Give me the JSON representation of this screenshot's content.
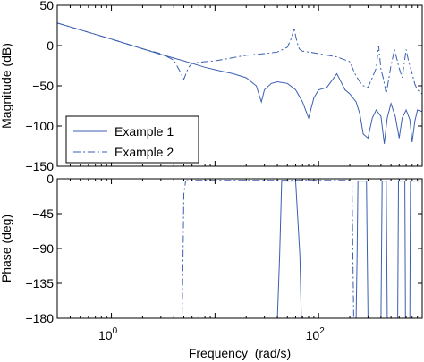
{
  "chart_data": [
    {
      "type": "line",
      "panel": "magnitude",
      "xscale": "log",
      "xlim": [
        0.3,
        1000
      ],
      "ylim": [
        -150,
        50
      ],
      "ylabel": "Magnitude (dB)",
      "xlabel": "",
      "yticks": [
        {
          "value": 50,
          "label": "50"
        },
        {
          "value": 0,
          "label": "0"
        },
        {
          "value": -50,
          "label": "−50"
        },
        {
          "value": -100,
          "label": "−100"
        },
        {
          "value": -150,
          "label": "−150"
        }
      ],
      "legend": {
        "placement": "lower-left"
      },
      "series": [
        {
          "name": "Example 1",
          "style": "solid",
          "color": "#3b5fb0",
          "x": [
            0.3,
            1,
            3,
            5,
            8,
            10,
            15,
            20,
            25,
            28,
            30,
            35,
            40,
            50,
            60,
            70,
            80,
            90,
            100,
            120,
            150,
            180,
            200,
            230,
            250,
            270,
            300,
            330,
            360,
            400,
            430,
            460,
            500,
            550,
            600,
            640,
            700,
            760,
            800,
            850,
            900,
            1000
          ],
          "y": [
            28,
            8,
            -11,
            -19,
            -27,
            -30,
            -35,
            -40,
            -50,
            -70,
            -55,
            -47,
            -45,
            -47,
            -55,
            -70,
            -90,
            -65,
            -55,
            -52,
            -35,
            -55,
            -60,
            -70,
            -85,
            -110,
            -115,
            -90,
            -80,
            -88,
            -122,
            -90,
            -72,
            -88,
            -115,
            -90,
            -80,
            -92,
            -120,
            -94,
            -80,
            -82
          ]
        },
        {
          "name": "Example 2",
          "style": "dashdot",
          "color": "#3b5fb0",
          "x": [
            0.3,
            1,
            2,
            3,
            4,
            4.5,
            5,
            5.5,
            6,
            8,
            10,
            15,
            20,
            30,
            40,
            50,
            55,
            58,
            60,
            62,
            65,
            70,
            80,
            100,
            150,
            200,
            230,
            250,
            270,
            300,
            330,
            360,
            380,
            400,
            420,
            450,
            500,
            540,
            600,
            640,
            700,
            740,
            800,
            850,
            900,
            1000
          ],
          "y": [
            28,
            8,
            -4,
            -10,
            -18,
            -30,
            -42,
            -28,
            -22,
            -20,
            -19,
            -15,
            -12,
            -10,
            -8,
            -2,
            10,
            22,
            12,
            4,
            -4,
            -7,
            -8,
            -10,
            -14,
            -20,
            -38,
            -45,
            -50,
            -52,
            -40,
            -28,
            0,
            -30,
            -40,
            -60,
            -25,
            -5,
            -28,
            -40,
            -5,
            -20,
            -35,
            -48,
            -55,
            -60
          ]
        }
      ]
    },
    {
      "type": "line",
      "panel": "phase",
      "xscale": "log",
      "xlim": [
        0.3,
        1000
      ],
      "ylim": [
        -180,
        0
      ],
      "ylabel": "Phase (deg)",
      "xlabel": "Frequency  (rad/s)",
      "xticks": [
        {
          "value": 1,
          "base": "10",
          "exp": "0"
        },
        {
          "value": 100,
          "base": "10",
          "exp": "2"
        }
      ],
      "yticks": [
        {
          "value": 0,
          "label": "0"
        },
        {
          "value": -45,
          "label": "−45"
        },
        {
          "value": -90,
          "label": "−90"
        },
        {
          "value": -135,
          "label": "−135"
        },
        {
          "value": -180,
          "label": "−180"
        }
      ],
      "series": [
        {
          "name": "Example 1",
          "style": "solid",
          "color": "#3b5fb0",
          "x": [
            0.3,
            40,
            42,
            44,
            60,
            66,
            68,
            70,
            230,
            235,
            240,
            290,
            295,
            300,
            400,
            405,
            410,
            450,
            455,
            460,
            580,
            585,
            590,
            680,
            685,
            690,
            760,
            765,
            770,
            1000
          ],
          "y": [
            -180,
            -180,
            -100,
            -3,
            -3,
            -100,
            -178,
            -180,
            -180,
            -100,
            -3,
            -3,
            -100,
            -180,
            -180,
            -100,
            -3,
            -3,
            -100,
            -180,
            -180,
            -100,
            -3,
            -3,
            -100,
            -180,
            -180,
            -100,
            -3,
            -3
          ]
        },
        {
          "name": "Example 2",
          "style": "dashdot",
          "color": "#3b5fb0",
          "x": [
            0.3,
            4.8,
            4.9,
            5.0,
            5.2,
            5.5,
            210,
            214,
            218,
            222,
            1000
          ],
          "y": [
            -180,
            -180,
            -110,
            -20,
            -3,
            -2,
            -2,
            -100,
            -178,
            -180,
            -180
          ]
        }
      ]
    }
  ],
  "legend_labels": [
    "Example 1",
    "Example 2"
  ],
  "colors": {
    "line": "#3b5fb0",
    "axes": "#000000",
    "background": "#ffffff"
  }
}
